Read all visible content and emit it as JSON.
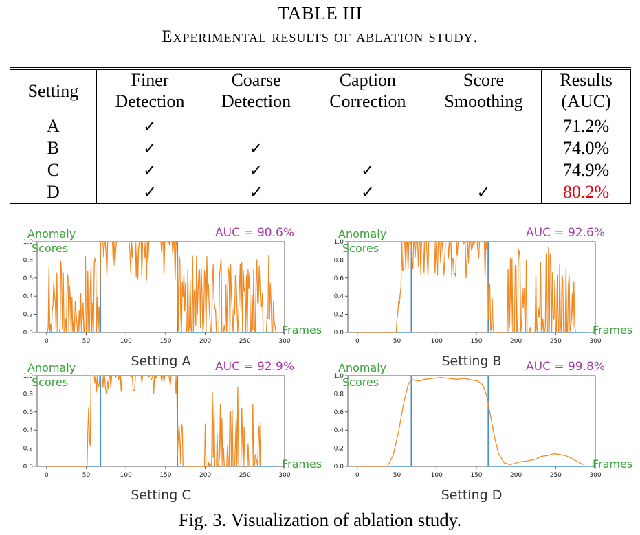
{
  "table": {
    "number": "TABLE III",
    "caption": "Experimental results of ablation study.",
    "headers": [
      {
        "line1": "Setting",
        "line2": ""
      },
      {
        "line1": "Finer",
        "line2": "Detection"
      },
      {
        "line1": "Coarse",
        "line2": "Detection"
      },
      {
        "line1": "Caption",
        "line2": "Correction"
      },
      {
        "line1": "Score",
        "line2": "Smoothing"
      },
      {
        "line1": "Results",
        "line2": "(AUC)"
      }
    ],
    "rows": [
      {
        "setting": "A",
        "finer": "✓",
        "coarse": "",
        "caption": "",
        "smoothing": "",
        "result": "71.2%"
      },
      {
        "setting": "B",
        "finer": "✓",
        "coarse": "✓",
        "caption": "",
        "smoothing": "",
        "result": "74.0%"
      },
      {
        "setting": "C",
        "finer": "✓",
        "coarse": "✓",
        "caption": "✓",
        "smoothing": "",
        "result": "74.9%"
      },
      {
        "setting": "D",
        "finer": "✓",
        "coarse": "✓",
        "caption": "✓",
        "smoothing": "✓",
        "result": "80.2%"
      }
    ],
    "best_color": "#e8000b"
  },
  "figure": {
    "caption": "Fig. 3.  Visualization of ablation study.",
    "annotation_anomaly": "Anomaly",
    "annotation_scores": "Scores",
    "annotation_frames": "Frames",
    "gt_color": "#4a8fc8",
    "score_color": "#f08a24"
  },
  "chart_data": [
    {
      "type": "line",
      "label": "Setting A",
      "auc_text": "AUC = 90.6%",
      "xlim": [
        -12,
        300
      ],
      "ylim": [
        0,
        1.0
      ],
      "xticks": [
        0,
        50,
        100,
        150,
        200,
        250,
        300
      ],
      "yticks": [
        0.0,
        0.2,
        0.4,
        0.6,
        0.8,
        1.0
      ],
      "gt": {
        "x": [
          0,
          68,
          68,
          165,
          165,
          290
        ],
        "y": [
          0,
          0,
          1,
          1,
          0,
          0
        ]
      },
      "score": {
        "x_start": 0,
        "x_end": 290,
        "seed": 11,
        "profile": "noisy_a"
      }
    },
    {
      "type": "line",
      "label": "Setting B",
      "auc_text": "AUC = 92.6%",
      "xlim": [
        -12,
        300
      ],
      "ylim": [
        0,
        1.0
      ],
      "xticks": [
        0,
        50,
        100,
        150,
        200,
        250,
        300
      ],
      "yticks": [
        0.0,
        0.2,
        0.4,
        0.6,
        0.8,
        1.0
      ],
      "gt": {
        "x": [
          0,
          68,
          68,
          165,
          165,
          290
        ],
        "y": [
          0,
          0,
          1,
          1,
          0,
          0
        ]
      },
      "score": {
        "x_start": 0,
        "x_end": 275,
        "seed": 23,
        "profile": "noisy_b"
      }
    },
    {
      "type": "line",
      "label": "Setting C",
      "auc_text": "AUC = 92.9%",
      "xlim": [
        -12,
        300
      ],
      "ylim": [
        0,
        1.0
      ],
      "xticks": [
        0,
        50,
        100,
        150,
        200,
        250,
        300
      ],
      "yticks": [
        0.0,
        0.2,
        0.4,
        0.6,
        0.8,
        1.0
      ],
      "gt": {
        "x": [
          0,
          68,
          68,
          165,
          165,
          290
        ],
        "y": [
          0,
          0,
          1,
          1,
          0,
          0
        ]
      },
      "score": {
        "x_start": 0,
        "x_end": 270,
        "seed": 37,
        "profile": "noisy_c"
      }
    },
    {
      "type": "line",
      "label": "Setting D",
      "auc_text": "AUC = 99.8%",
      "xlim": [
        -12,
        300
      ],
      "ylim": [
        0,
        1.0
      ],
      "xticks": [
        0,
        50,
        100,
        150,
        200,
        250,
        300
      ],
      "yticks": [
        0.0,
        0.2,
        0.4,
        0.6,
        0.8,
        1.0
      ],
      "gt": {
        "x": [
          0,
          68,
          68,
          165,
          165,
          290
        ],
        "y": [
          0,
          0,
          1,
          1,
          0,
          0
        ]
      },
      "score": {
        "x": [
          0,
          38,
          45,
          52,
          58,
          64,
          68,
          72,
          78,
          85,
          95,
          105,
          115,
          125,
          135,
          145,
          152,
          158,
          163,
          168,
          173,
          178,
          185,
          192,
          198,
          205,
          215,
          225,
          232,
          240,
          248,
          255,
          262,
          270,
          278,
          285
        ],
        "y": [
          0,
          0,
          0.12,
          0.38,
          0.68,
          0.9,
          0.96,
          0.95,
          0.94,
          0.96,
          0.97,
          0.98,
          0.97,
          0.96,
          0.97,
          0.95,
          0.94,
          0.9,
          0.78,
          0.55,
          0.32,
          0.14,
          0.04,
          0.02,
          0.03,
          0.05,
          0.06,
          0.08,
          0.11,
          0.12,
          0.14,
          0.13,
          0.12,
          0.09,
          0.05,
          0.02
        ]
      }
    }
  ]
}
